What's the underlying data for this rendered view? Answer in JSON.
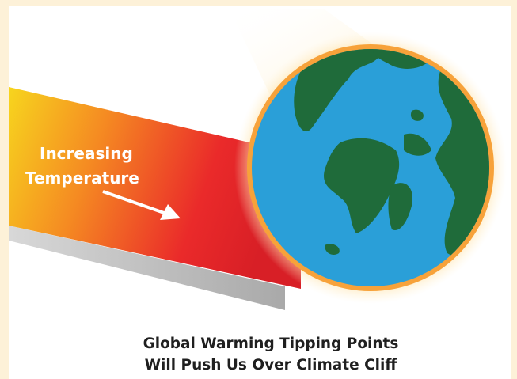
{
  "label": {
    "line1": "Increasing",
    "line2": "Temperature"
  },
  "caption": {
    "line1": "Global Warming Tipping Points",
    "line2": "Will Push Us Over Climate Cliff"
  }
}
